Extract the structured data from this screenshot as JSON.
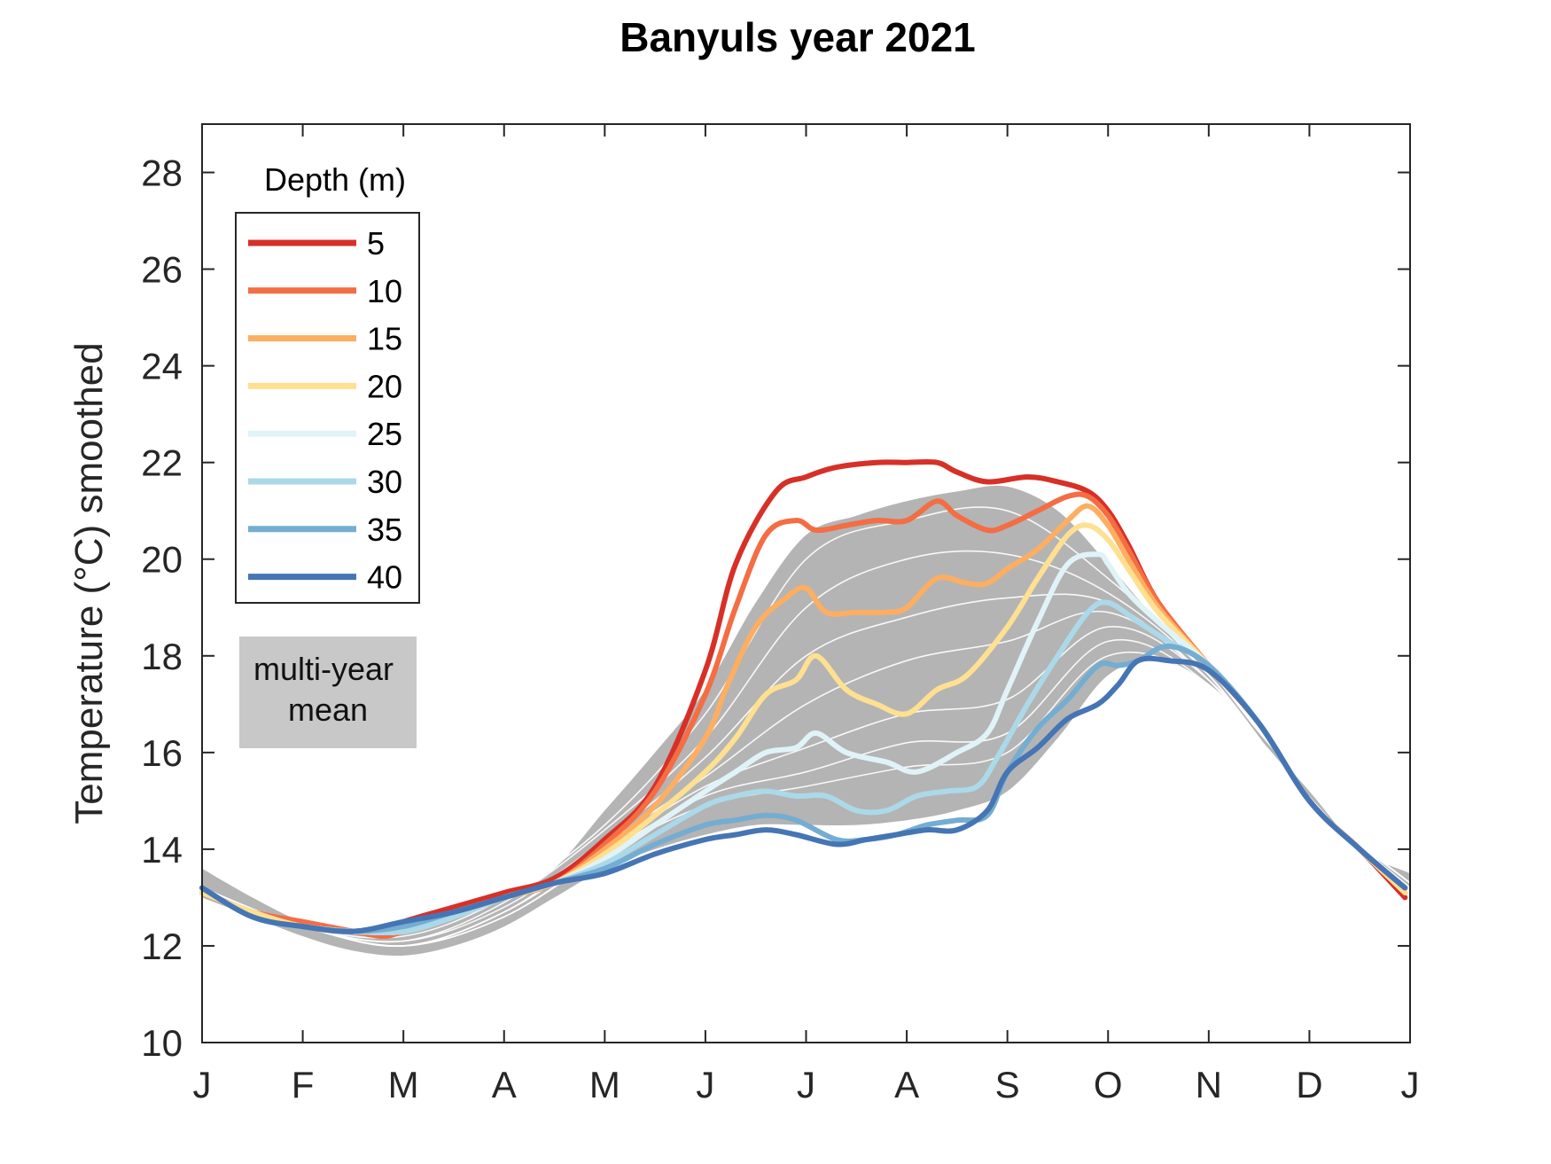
{
  "chart_data": {
    "type": "line",
    "title": "Banyuls year 2021",
    "xlabel": "",
    "ylabel": "Temperature (°C) smoothed",
    "x_tick_labels": [
      "J",
      "F",
      "M",
      "A",
      "M",
      "J",
      "J",
      "A",
      "S",
      "O",
      "N",
      "D",
      "J"
    ],
    "x_unit": "month of year (0 = 1 Jan, 12 = 1 Jan next year)",
    "xlim": [
      0,
      12
    ],
    "ylim": [
      10,
      29
    ],
    "y_ticks": [
      10,
      12,
      14,
      16,
      18,
      20,
      22,
      24,
      26,
      28
    ],
    "grid": false,
    "legend": {
      "title": "Depth (m)",
      "placement": "top-left"
    },
    "mean_band": {
      "label": "multi-year mean",
      "color": "#b4b4b4",
      "x": [
        0,
        0.5,
        1,
        1.5,
        2,
        2.5,
        3,
        3.5,
        4,
        4.5,
        5,
        5.5,
        6,
        6.5,
        7,
        7.5,
        8,
        8.5,
        9,
        9.5,
        10,
        10.5,
        11,
        11.5,
        12
      ],
      "upper": [
        13.6,
        13.0,
        12.5,
        12.3,
        12.3,
        12.6,
        13.0,
        13.6,
        14.8,
        16.0,
        17.3,
        19.1,
        20.5,
        20.9,
        21.2,
        21.4,
        21.5,
        21.0,
        19.9,
        18.7,
        17.7,
        16.4,
        15.2,
        14.0,
        13.5
      ],
      "lower": [
        13.0,
        12.6,
        12.2,
        11.9,
        11.8,
        12.0,
        12.4,
        13.0,
        13.6,
        14.0,
        14.3,
        14.5,
        14.5,
        14.5,
        14.6,
        14.8,
        15.2,
        16.3,
        17.6,
        17.9,
        17.4,
        16.3,
        15.1,
        14.0,
        13.2
      ]
    },
    "mean_lines": [
      {
        "x": [
          0,
          1,
          2,
          3,
          4,
          5,
          6,
          7,
          8,
          9,
          10,
          11,
          12
        ],
        "values": [
          13.2,
          12.4,
          12.2,
          13.0,
          14.5,
          16.8,
          20.0,
          20.8,
          21.0,
          19.6,
          17.6,
          15.0,
          13.3
        ]
      },
      {
        "x": [
          0,
          1,
          2,
          3,
          4,
          5,
          6,
          7,
          8,
          9,
          10,
          11,
          12
        ],
        "values": [
          13.2,
          12.4,
          12.1,
          12.9,
          14.4,
          16.3,
          19.0,
          20.0,
          20.1,
          19.3,
          17.6,
          15.0,
          13.3
        ]
      },
      {
        "x": [
          0,
          1,
          2,
          3,
          4,
          5,
          6,
          7,
          8,
          9,
          10,
          11,
          12
        ],
        "values": [
          13.2,
          12.4,
          12.1,
          12.8,
          14.2,
          15.9,
          18.0,
          18.8,
          19.2,
          19.1,
          17.5,
          15.0,
          13.3
        ]
      },
      {
        "x": [
          0,
          1,
          2,
          3,
          4,
          5,
          6,
          7,
          8,
          9,
          10,
          11,
          12
        ],
        "values": [
          13.1,
          12.4,
          12.0,
          12.7,
          14.1,
          15.5,
          17.0,
          17.9,
          18.3,
          18.9,
          17.5,
          15.0,
          13.3
        ]
      },
      {
        "x": [
          0,
          1,
          2,
          3,
          4,
          5,
          6,
          7,
          8,
          9,
          10,
          11,
          12
        ],
        "values": [
          13.1,
          12.4,
          12.0,
          12.7,
          14.0,
          15.3,
          16.1,
          16.8,
          17.1,
          18.6,
          17.5,
          15.0,
          13.3
        ]
      },
      {
        "x": [
          0,
          1,
          2,
          3,
          4,
          5,
          6,
          7,
          8,
          9,
          10,
          11,
          12
        ],
        "values": [
          13.1,
          12.4,
          12.0,
          12.6,
          13.9,
          15.1,
          15.6,
          16.2,
          16.4,
          18.3,
          17.4,
          15.0,
          13.2
        ]
      },
      {
        "x": [
          0,
          1,
          2,
          3,
          4,
          5,
          6,
          7,
          8,
          9,
          10,
          11,
          12
        ],
        "values": [
          13.1,
          12.4,
          12.0,
          12.6,
          13.9,
          14.9,
          15.3,
          15.7,
          16.0,
          18.0,
          17.4,
          15.0,
          13.2
        ]
      }
    ],
    "series": [
      {
        "name": "5",
        "color": "#d73027",
        "x": [
          0,
          0.5,
          1,
          1.5,
          1.8,
          2,
          2.5,
          3,
          3.5,
          4,
          4.5,
          5,
          5.3,
          5.7,
          6,
          6.3,
          6.7,
          7,
          7.3,
          7.5,
          7.8,
          8.2,
          8.5,
          8.8,
          9,
          9.2,
          9.5,
          10,
          10.5,
          11,
          11.5,
          11.95
        ],
        "values": [
          13.1,
          12.7,
          12.4,
          12.3,
          12.3,
          12.5,
          12.8,
          13.1,
          13.4,
          14.2,
          15.3,
          17.7,
          19.9,
          21.4,
          21.7,
          21.9,
          22.0,
          22.0,
          22.0,
          21.8,
          21.6,
          21.7,
          21.6,
          21.4,
          21.0,
          20.3,
          19.1,
          17.8,
          16.6,
          15.0,
          14.0,
          13.0
        ]
      },
      {
        "name": "10",
        "color": "#f46d43",
        "x": [
          0,
          0.5,
          1,
          1.5,
          1.8,
          2,
          2.5,
          3,
          3.5,
          4,
          4.5,
          5,
          5.3,
          5.6,
          5.9,
          6.1,
          6.4,
          6.7,
          7,
          7.3,
          7.5,
          7.8,
          8,
          8.3,
          8.6,
          8.8,
          9,
          9.2,
          9.5,
          10,
          10.5,
          11,
          11.5,
          11.95
        ],
        "values": [
          13.1,
          12.7,
          12.5,
          12.3,
          12.2,
          12.3,
          12.6,
          13.0,
          13.3,
          14.1,
          15.2,
          17.2,
          19.0,
          20.5,
          20.8,
          20.6,
          20.7,
          20.8,
          20.8,
          21.2,
          20.9,
          20.6,
          20.7,
          21.0,
          21.3,
          21.3,
          20.9,
          20.2,
          19.1,
          17.8,
          16.6,
          15.0,
          14.0,
          13.1
        ]
      },
      {
        "name": "15",
        "color": "#fdae61",
        "x": [
          0,
          0.5,
          1,
          1.5,
          2,
          2.5,
          3,
          3.5,
          4,
          4.5,
          5,
          5.2,
          5.5,
          5.8,
          6,
          6.2,
          6.5,
          6.8,
          7,
          7.3,
          7.6,
          7.8,
          8,
          8.3,
          8.6,
          8.8,
          9,
          9.2,
          9.5,
          10,
          10.5,
          11,
          11.5,
          11.95
        ],
        "values": [
          13.1,
          12.7,
          12.4,
          12.3,
          12.3,
          12.6,
          13.0,
          13.3,
          14.0,
          14.9,
          16.3,
          17.3,
          18.6,
          19.2,
          19.4,
          18.9,
          18.9,
          18.9,
          19.0,
          19.6,
          19.5,
          19.5,
          19.8,
          20.2,
          20.8,
          21.1,
          20.7,
          20.0,
          19.0,
          17.8,
          16.6,
          15.0,
          14.0,
          13.1
        ]
      },
      {
        "name": "20",
        "color": "#fee090",
        "x": [
          0,
          0.5,
          1,
          1.5,
          2,
          2.5,
          3,
          3.5,
          4,
          4.5,
          5,
          5.3,
          5.6,
          5.9,
          6.1,
          6.4,
          6.7,
          7,
          7.3,
          7.6,
          8,
          8.3,
          8.6,
          8.8,
          9,
          9.2,
          9.5,
          10,
          10.5,
          11,
          11.5,
          11.95
        ],
        "values": [
          13.1,
          12.7,
          12.4,
          12.3,
          12.3,
          12.6,
          13.0,
          13.3,
          13.9,
          14.7,
          15.6,
          16.3,
          17.2,
          17.5,
          18.0,
          17.3,
          17.0,
          16.8,
          17.3,
          17.6,
          18.6,
          19.6,
          20.5,
          20.7,
          20.4,
          19.8,
          18.9,
          17.8,
          16.6,
          15.0,
          14.0,
          13.1
        ]
      },
      {
        "name": "25",
        "color": "#e0f3f8",
        "x": [
          0,
          0.5,
          1,
          1.5,
          2,
          2.5,
          3,
          3.5,
          4,
          4.5,
          5,
          5.3,
          5.6,
          5.9,
          6.1,
          6.4,
          6.8,
          7.1,
          7.5,
          7.8,
          8,
          8.3,
          8.6,
          8.9,
          9,
          9.2,
          9.5,
          10,
          10.5,
          11,
          11.5,
          11.95
        ],
        "values": [
          13.2,
          12.6,
          12.4,
          12.3,
          12.3,
          12.6,
          13.0,
          13.3,
          13.8,
          14.5,
          15.2,
          15.6,
          16.0,
          16.1,
          16.4,
          16.0,
          15.8,
          15.6,
          16.0,
          16.4,
          17.3,
          18.7,
          19.9,
          20.1,
          19.9,
          19.3,
          18.7,
          17.8,
          16.6,
          15.0,
          14.0,
          13.2
        ]
      },
      {
        "name": "30",
        "color": "#abd9e9",
        "x": [
          0,
          0.5,
          1,
          1.5,
          2,
          2.5,
          3,
          3.5,
          4,
          4.5,
          5,
          5.3,
          5.6,
          5.9,
          6.2,
          6.5,
          6.8,
          7.1,
          7.4,
          7.7,
          7.9,
          8.2,
          8.5,
          8.8,
          9,
          9.3,
          9.6,
          10,
          10.5,
          11,
          11.5,
          11.95
        ],
        "values": [
          13.2,
          12.6,
          12.4,
          12.3,
          12.3,
          12.6,
          13.0,
          13.3,
          13.7,
          14.3,
          14.9,
          15.1,
          15.2,
          15.1,
          15.1,
          14.8,
          14.8,
          15.1,
          15.2,
          15.3,
          15.9,
          17.0,
          18.0,
          18.9,
          19.1,
          18.7,
          18.3,
          17.8,
          16.6,
          15.0,
          14.0,
          13.2
        ]
      },
      {
        "name": "35",
        "color": "#74add1",
        "x": [
          0,
          0.5,
          1,
          1.5,
          2,
          2.5,
          3,
          3.5,
          4,
          4.5,
          5,
          5.3,
          5.6,
          5.9,
          6.3,
          6.6,
          6.9,
          7.2,
          7.5,
          7.8,
          8,
          8.3,
          8.6,
          8.9,
          9.1,
          9.3,
          9.6,
          10,
          10.5,
          11,
          11.5,
          11.95
        ],
        "values": [
          13.2,
          12.6,
          12.4,
          12.3,
          12.4,
          12.7,
          13.0,
          13.3,
          13.6,
          14.1,
          14.5,
          14.6,
          14.7,
          14.6,
          14.2,
          14.2,
          14.3,
          14.5,
          14.6,
          14.7,
          15.6,
          16.5,
          17.1,
          17.8,
          17.8,
          17.9,
          18.2,
          17.8,
          16.6,
          15.0,
          14.0,
          13.2
        ]
      },
      {
        "name": "40",
        "color": "#4575b4",
        "x": [
          0,
          0.5,
          1,
          1.5,
          2,
          2.5,
          3,
          3.5,
          4,
          4.5,
          5,
          5.3,
          5.6,
          5.9,
          6.3,
          6.6,
          6.9,
          7.2,
          7.5,
          7.8,
          8,
          8.3,
          8.6,
          8.9,
          9.1,
          9.3,
          9.6,
          10,
          10.5,
          11,
          11.5,
          11.95
        ],
        "values": [
          13.2,
          12.6,
          12.4,
          12.3,
          12.5,
          12.7,
          13.0,
          13.3,
          13.5,
          13.9,
          14.2,
          14.3,
          14.4,
          14.3,
          14.1,
          14.2,
          14.3,
          14.4,
          14.4,
          14.8,
          15.6,
          16.1,
          16.7,
          17.0,
          17.4,
          17.9,
          17.9,
          17.7,
          16.6,
          15.0,
          14.0,
          13.2
        ]
      }
    ]
  }
}
